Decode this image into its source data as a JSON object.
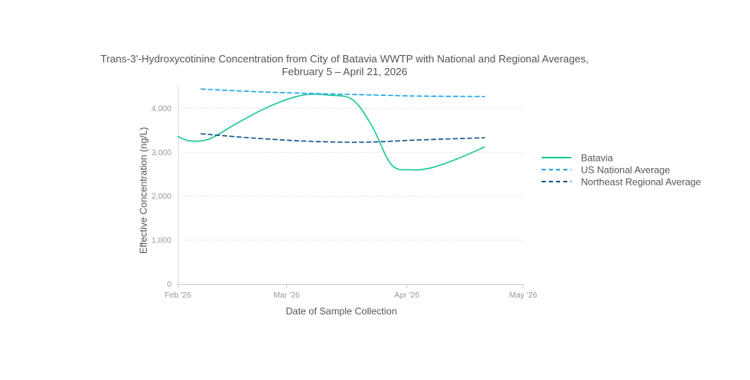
{
  "chart_data": {
    "type": "line",
    "title": "Trans-3'-Hydroxycotinine Concentration from City of Batavia WWTP with National and Regional Averages,",
    "subtitle": "February 5 – April 21, 2026",
    "xlabel": "Date of Sample Collection",
    "ylabel": "Effective Concentration (ng/L)",
    "ylim": [
      0,
      4500
    ],
    "yticks": [
      0,
      1000,
      2000,
      3000,
      4000
    ],
    "ytick_labels": [
      "0",
      "1,000",
      "2,000",
      "3,000",
      "4,000"
    ],
    "xlim": [
      "2026-02-01",
      "2026-05-01"
    ],
    "xticks": [
      "2026-02-01",
      "2026-03-01",
      "2026-04-01",
      "2026-05-01"
    ],
    "xtick_labels": [
      "Feb '26",
      "Mar '26",
      "Apr '26",
      "May '26"
    ],
    "grid": "horizontal dotted",
    "legend_position": "right",
    "series": [
      {
        "name": "Batavia",
        "style": "solid",
        "color": "#1ec99a",
        "x": [
          "2026-02-01",
          "2026-02-04",
          "2026-02-09",
          "2026-02-16",
          "2026-02-23",
          "2026-03-02",
          "2026-03-07",
          "2026-03-12",
          "2026-03-18",
          "2026-03-23",
          "2026-03-28",
          "2026-04-02",
          "2026-04-07",
          "2026-04-14",
          "2026-04-21"
        ],
        "y": [
          3360,
          3260,
          3300,
          3650,
          3980,
          4230,
          4320,
          4300,
          4200,
          3600,
          2720,
          2600,
          2640,
          2850,
          3120
        ]
      },
      {
        "name": "US National Average",
        "style": "dashed",
        "color": "#1ea6e8",
        "x": [
          "2026-02-07",
          "2026-02-21",
          "2026-03-07",
          "2026-03-21",
          "2026-04-04",
          "2026-04-21"
        ],
        "y": [
          4440,
          4380,
          4340,
          4310,
          4280,
          4270
        ]
      },
      {
        "name": "Northeast Regional Average",
        "style": "dashed",
        "color": "#1a5a8a",
        "x": [
          "2026-02-07",
          "2026-02-21",
          "2026-03-07",
          "2026-03-21",
          "2026-04-04",
          "2026-04-21"
        ],
        "y": [
          3420,
          3320,
          3250,
          3230,
          3280,
          3330
        ]
      }
    ]
  }
}
